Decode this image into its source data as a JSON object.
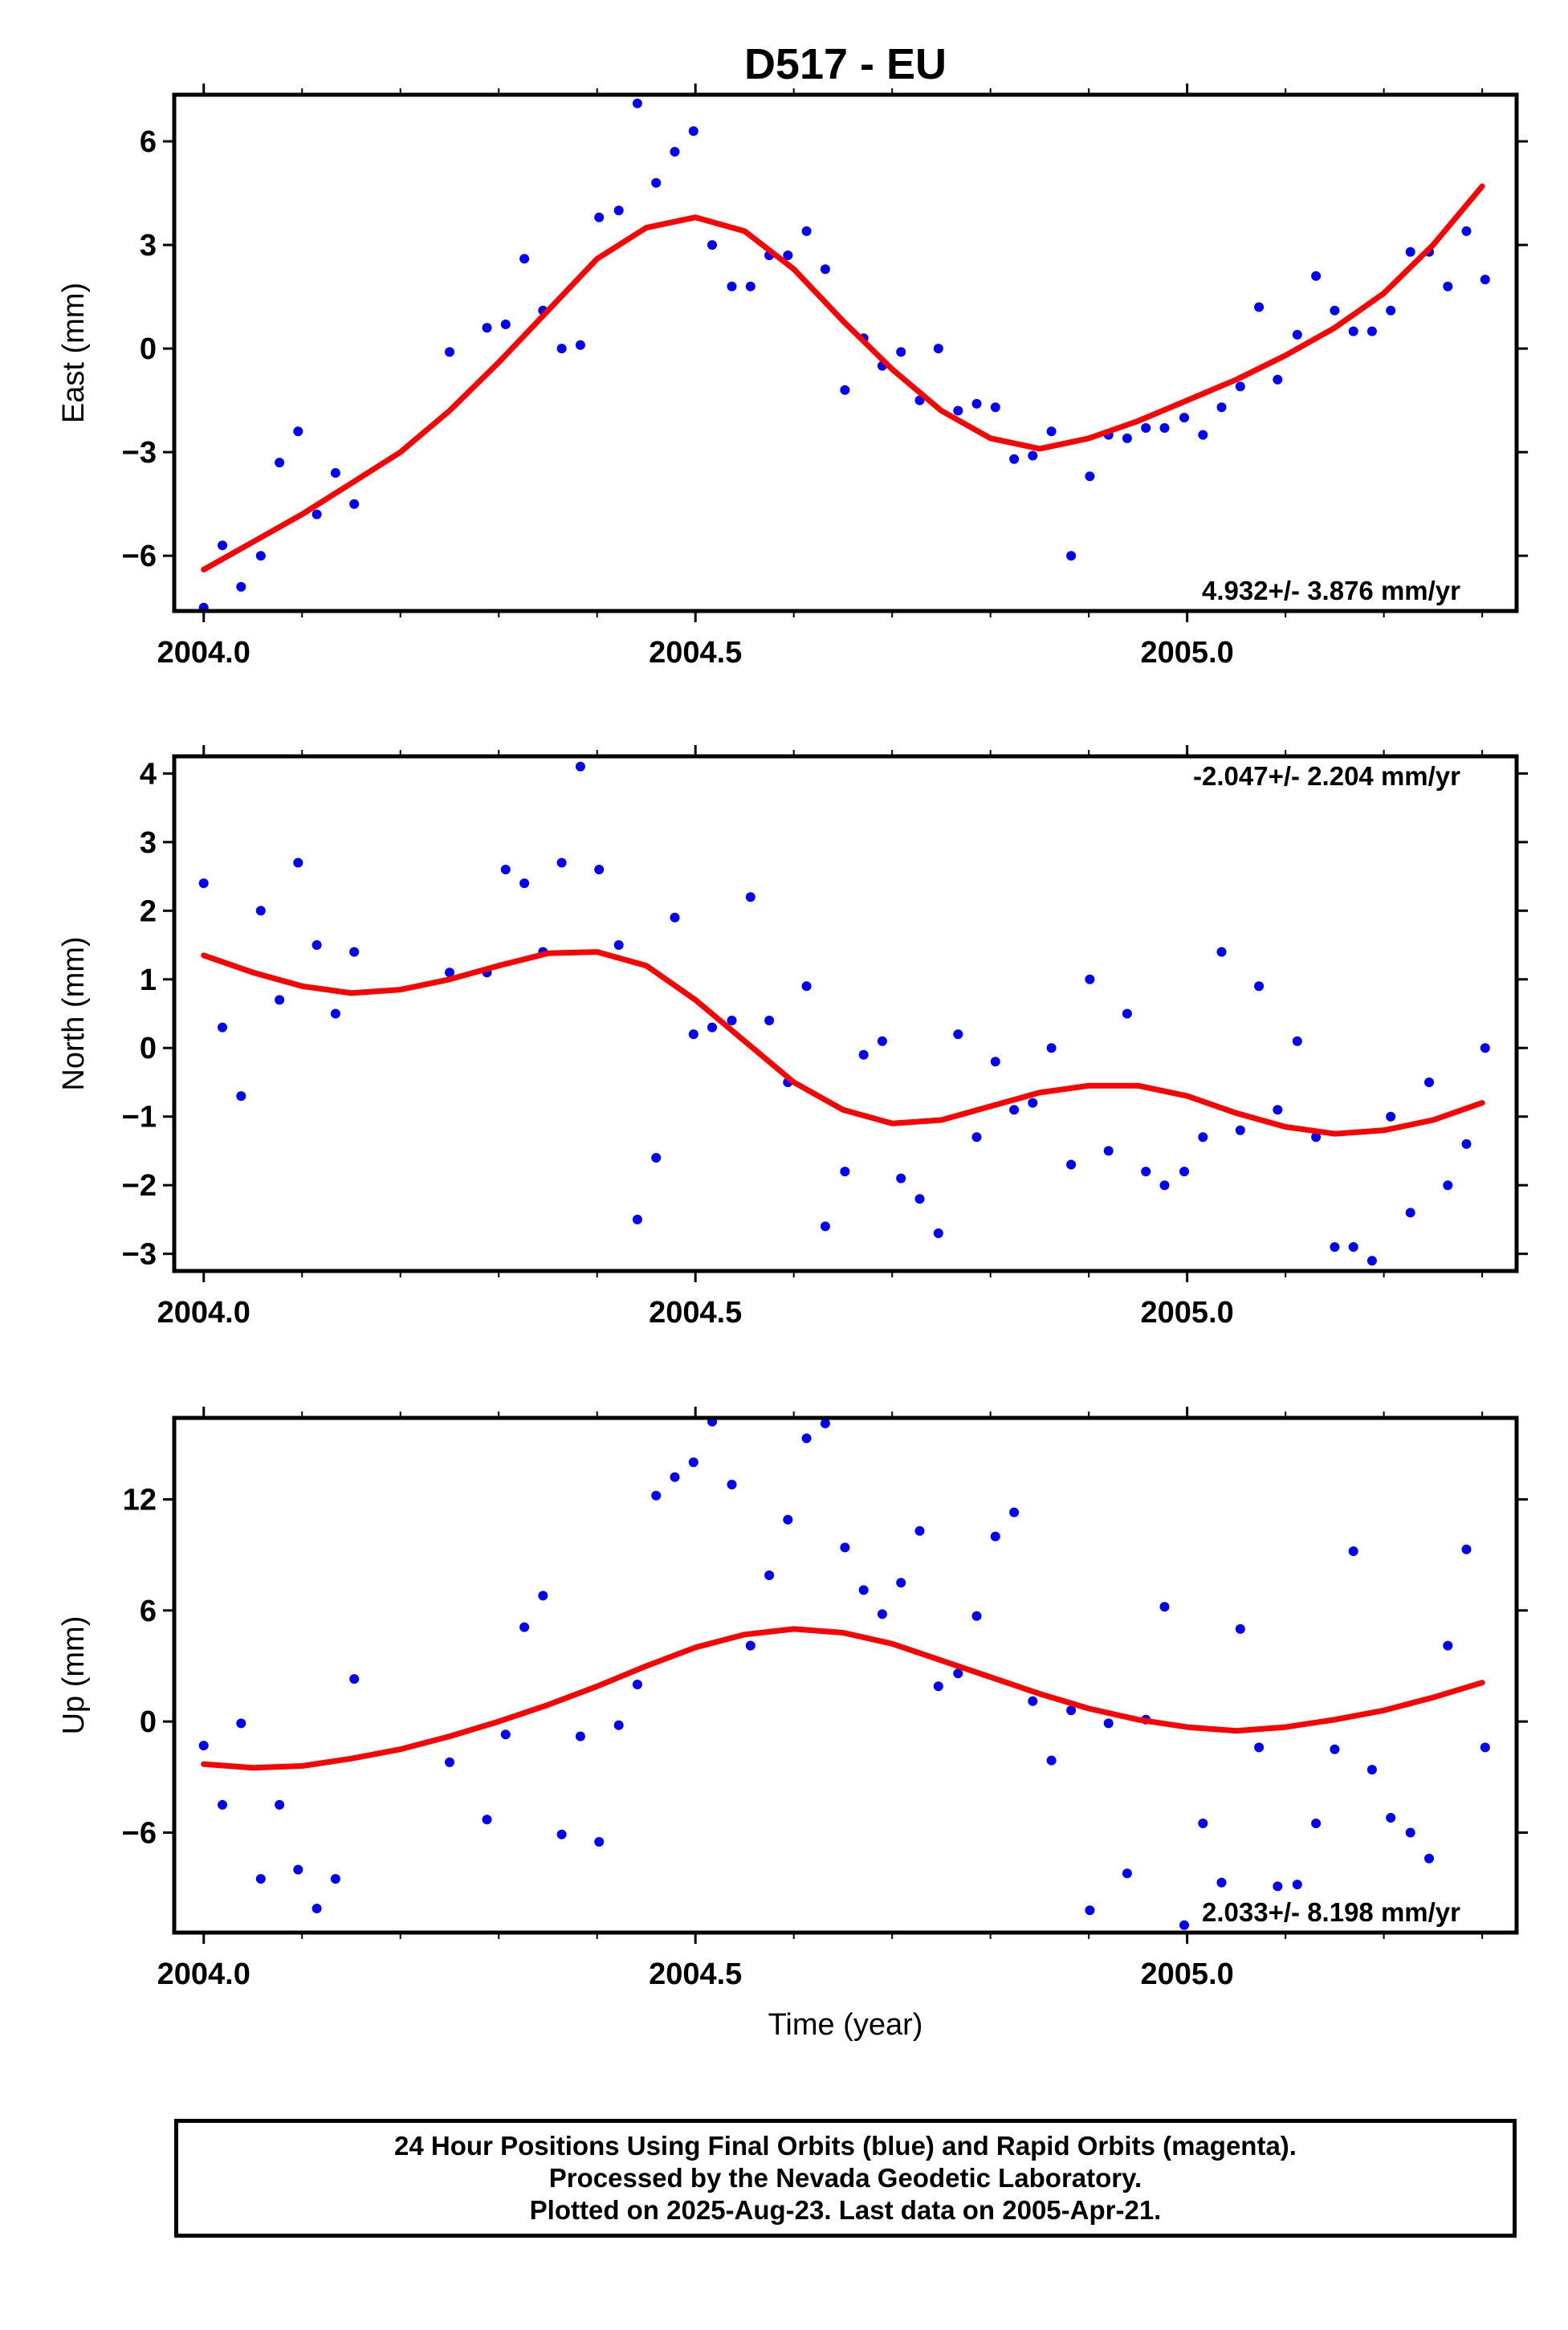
{
  "title": "D517 - EU",
  "chart_data": [
    {
      "type": "scatter",
      "ylabel": "East (mm)",
      "xlabel": "",
      "xlim": [
        2003.97,
        2005.335
      ],
      "ylim": [
        -7.6,
        7.35
      ],
      "x_ticks": [
        2004.0,
        2004.5,
        2005.0
      ],
      "x_tick_labels": [
        "2004.0",
        "2004.5",
        "2005.0"
      ],
      "y_ticks": [
        -6,
        -3,
        0,
        3,
        6
      ],
      "y_tick_labels": [
        "−6",
        "−3",
        "0",
        "3",
        "6"
      ],
      "rate_label": "4.932+/- 3.876 mm/yr",
      "rate_position": "bottom-right",
      "series": [
        {
          "color": "#0000ff",
          "x": [
            2004.0,
            2004.019,
            2004.038,
            2004.058,
            2004.077,
            2004.096,
            2004.115,
            2004.134,
            2004.153,
            2004.25,
            2004.288,
            2004.307,
            2004.326,
            2004.345,
            2004.364,
            2004.383,
            2004.402,
            2004.422,
            2004.441,
            2004.46,
            2004.479,
            2004.498,
            2004.517,
            2004.537,
            2004.556,
            2004.575,
            2004.594,
            2004.613,
            2004.632,
            2004.652,
            2004.671,
            2004.69,
            2004.709,
            2004.728,
            2004.747,
            2004.767,
            2004.786,
            2004.805,
            2004.824,
            2004.843,
            2004.862,
            2004.882,
            2004.901,
            2004.92,
            2004.939,
            2004.958,
            2004.977,
            2004.997,
            2005.016,
            2005.035,
            2005.054,
            2005.073,
            2005.092,
            2005.112,
            2005.131,
            2005.15,
            2005.169,
            2005.188,
            2005.207,
            2005.227,
            2005.246,
            2005.265,
            2005.284,
            2005.303
          ],
          "y": [
            -7.5,
            -5.7,
            -6.9,
            -6.0,
            -3.3,
            -2.4,
            -4.8,
            -3.6,
            -4.5,
            -0.1,
            0.6,
            0.7,
            2.6,
            1.1,
            0.0,
            0.1,
            3.8,
            4.0,
            7.1,
            4.8,
            5.7,
            6.3,
            3.0,
            1.8,
            1.8,
            2.7,
            2.7,
            3.4,
            2.3,
            -1.2,
            0.3,
            -0.5,
            -0.1,
            -1.5,
            0.0,
            -1.8,
            -1.6,
            -1.7,
            -3.2,
            -3.1,
            -2.4,
            -6.0,
            -3.7,
            -2.5,
            -2.6,
            -2.3,
            -2.3,
            -2.0,
            -2.5,
            -1.7,
            -1.1,
            1.2,
            -0.9,
            0.4,
            2.1,
            1.1,
            0.5,
            0.5,
            1.1,
            2.8,
            2.8,
            1.8,
            3.4,
            2.0
          ]
        },
        {
          "color": "#ff0000",
          "style": "line",
          "x": [
            2004.0,
            2004.05,
            2004.1,
            2004.15,
            2004.2,
            2004.25,
            2004.3,
            2004.35,
            2004.4,
            2004.45,
            2004.5,
            2004.55,
            2004.6,
            2004.65,
            2004.7,
            2004.75,
            2004.8,
            2004.85,
            2004.9,
            2004.95,
            2005.0,
            2005.05,
            2005.1,
            2005.15,
            2005.2,
            2005.25,
            2005.3
          ],
          "y": [
            -6.4,
            -5.6,
            -4.8,
            -3.9,
            -3.0,
            -1.8,
            -0.4,
            1.1,
            2.6,
            3.5,
            3.8,
            3.4,
            2.3,
            0.8,
            -0.6,
            -1.8,
            -2.6,
            -2.9,
            -2.6,
            -2.1,
            -1.5,
            -0.9,
            -0.2,
            0.6,
            1.6,
            3.0,
            4.7
          ]
        }
      ]
    },
    {
      "type": "scatter",
      "ylabel": "North (mm)",
      "xlabel": "",
      "xlim": [
        2003.97,
        2005.335
      ],
      "ylim": [
        -3.25,
        4.25
      ],
      "x_ticks": [
        2004.0,
        2004.5,
        2005.0
      ],
      "x_tick_labels": [
        "2004.0",
        "2004.5",
        "2005.0"
      ],
      "y_ticks": [
        -3,
        -2,
        -1,
        0,
        1,
        2,
        3,
        4
      ],
      "y_tick_labels": [
        "−3",
        "−2",
        "−1",
        "0",
        "1",
        "2",
        "3",
        "4"
      ],
      "rate_label": "-2.047+/- 2.204 mm/yr",
      "rate_position": "top-right",
      "series": [
        {
          "color": "#0000ff",
          "x": [
            2004.0,
            2004.019,
            2004.038,
            2004.058,
            2004.077,
            2004.096,
            2004.115,
            2004.134,
            2004.153,
            2004.25,
            2004.288,
            2004.307,
            2004.326,
            2004.345,
            2004.364,
            2004.383,
            2004.402,
            2004.422,
            2004.441,
            2004.46,
            2004.479,
            2004.498,
            2004.517,
            2004.537,
            2004.556,
            2004.575,
            2004.594,
            2004.613,
            2004.632,
            2004.652,
            2004.671,
            2004.69,
            2004.709,
            2004.728,
            2004.747,
            2004.767,
            2004.786,
            2004.805,
            2004.824,
            2004.843,
            2004.862,
            2004.882,
            2004.901,
            2004.92,
            2004.939,
            2004.958,
            2004.977,
            2004.997,
            2005.016,
            2005.035,
            2005.054,
            2005.073,
            2005.092,
            2005.112,
            2005.131,
            2005.15,
            2005.169,
            2005.188,
            2005.207,
            2005.227,
            2005.246,
            2005.265,
            2005.284,
            2005.303
          ],
          "y": [
            2.4,
            0.3,
            -0.7,
            2.0,
            0.7,
            2.7,
            1.5,
            0.5,
            1.4,
            1.1,
            1.1,
            2.6,
            2.4,
            1.4,
            2.7,
            4.1,
            2.6,
            1.5,
            -2.5,
            -1.6,
            1.9,
            0.2,
            0.3,
            0.4,
            2.2,
            0.4,
            -0.5,
            0.9,
            -2.6,
            -1.8,
            -0.1,
            0.1,
            -1.9,
            -2.2,
            -2.7,
            0.2,
            -1.3,
            -0.2,
            -0.9,
            -0.8,
            0.0,
            -1.7,
            1.0,
            -1.5,
            0.5,
            -1.8,
            -2.0,
            -1.8,
            -1.3,
            1.4,
            -1.2,
            0.9,
            -0.9,
            0.1,
            -1.3,
            -2.9,
            -2.9,
            -3.1,
            -1.0,
            -2.4,
            -0.5,
            -2.0,
            -1.4,
            0.0
          ]
        },
        {
          "color": "#ff0000",
          "style": "line",
          "x": [
            2004.0,
            2004.05,
            2004.1,
            2004.15,
            2004.2,
            2004.25,
            2004.3,
            2004.35,
            2004.4,
            2004.45,
            2004.5,
            2004.55,
            2004.6,
            2004.65,
            2004.7,
            2004.75,
            2004.8,
            2004.85,
            2004.9,
            2004.95,
            2005.0,
            2005.05,
            2005.1,
            2005.15,
            2005.2,
            2005.25,
            2005.3
          ],
          "y": [
            1.35,
            1.1,
            0.9,
            0.8,
            0.85,
            1.0,
            1.2,
            1.38,
            1.4,
            1.2,
            0.7,
            0.1,
            -0.5,
            -0.9,
            -1.1,
            -1.05,
            -0.85,
            -0.65,
            -0.55,
            -0.55,
            -0.7,
            -0.95,
            -1.15,
            -1.25,
            -1.2,
            -1.05,
            -0.8
          ]
        }
      ]
    },
    {
      "type": "scatter",
      "ylabel": "Up (mm)",
      "xlabel": "Time (year)",
      "xlim": [
        2003.97,
        2005.335
      ],
      "ylim": [
        -11.4,
        16.4
      ],
      "x_ticks": [
        2004.0,
        2004.5,
        2005.0
      ],
      "x_tick_labels": [
        "2004.0",
        "2004.5",
        "2005.0"
      ],
      "y_ticks": [
        -6,
        0,
        6,
        12
      ],
      "y_tick_labels": [
        "−6",
        "0",
        "6",
        "12"
      ],
      "rate_label": "2.033+/- 8.198 mm/yr",
      "rate_position": "bottom-right",
      "series": [
        {
          "color": "#0000ff",
          "x": [
            2004.0,
            2004.019,
            2004.038,
            2004.058,
            2004.077,
            2004.096,
            2004.115,
            2004.134,
            2004.153,
            2004.25,
            2004.288,
            2004.307,
            2004.326,
            2004.345,
            2004.364,
            2004.383,
            2004.402,
            2004.422,
            2004.441,
            2004.46,
            2004.479,
            2004.498,
            2004.517,
            2004.537,
            2004.556,
            2004.575,
            2004.594,
            2004.613,
            2004.632,
            2004.652,
            2004.671,
            2004.69,
            2004.709,
            2004.728,
            2004.747,
            2004.767,
            2004.786,
            2004.805,
            2004.824,
            2004.843,
            2004.862,
            2004.882,
            2004.901,
            2004.92,
            2004.939,
            2004.958,
            2004.977,
            2004.997,
            2005.016,
            2005.035,
            2005.054,
            2005.073,
            2005.092,
            2005.112,
            2005.131,
            2005.15,
            2005.169,
            2005.188,
            2005.207,
            2005.227,
            2005.246,
            2005.265,
            2005.284,
            2005.303
          ],
          "y": [
            -1.3,
            -4.5,
            -0.1,
            -8.5,
            -4.5,
            -8.0,
            -10.1,
            -8.5,
            2.3,
            -2.2,
            -5.3,
            -0.7,
            5.1,
            6.8,
            -6.1,
            -0.8,
            -6.5,
            -0.2,
            2.0,
            12.2,
            13.2,
            14.0,
            16.2,
            12.8,
            4.1,
            7.9,
            10.9,
            15.3,
            16.1,
            9.4,
            7.1,
            5.8,
            7.5,
            10.3,
            1.9,
            2.6,
            5.7,
            10.0,
            11.3,
            1.1,
            -2.1,
            0.6,
            -10.2,
            -0.1,
            -8.2,
            0.1,
            6.2,
            -11.0,
            -5.5,
            -8.7,
            5.0,
            -1.4,
            -8.9,
            -8.8,
            -5.5,
            -1.5,
            9.2,
            -2.6,
            -5.2,
            -6.0,
            -7.4,
            4.1,
            9.3,
            -1.4
          ]
        },
        {
          "color": "#ff0000",
          "style": "line",
          "x": [
            2004.0,
            2004.05,
            2004.1,
            2004.15,
            2004.2,
            2004.25,
            2004.3,
            2004.35,
            2004.4,
            2004.45,
            2004.5,
            2004.55,
            2004.6,
            2004.65,
            2004.7,
            2004.75,
            2004.8,
            2004.85,
            2004.9,
            2004.95,
            2005.0,
            2005.05,
            2005.1,
            2005.15,
            2005.2,
            2005.25,
            2005.3
          ],
          "y": [
            -2.3,
            -2.5,
            -2.4,
            -2.0,
            -1.5,
            -0.8,
            0.0,
            0.9,
            1.9,
            3.0,
            4.0,
            4.7,
            5.0,
            4.8,
            4.2,
            3.3,
            2.4,
            1.5,
            0.7,
            0.1,
            -0.3,
            -0.5,
            -0.3,
            0.1,
            0.6,
            1.3,
            2.1
          ]
        }
      ]
    }
  ],
  "caption": {
    "line1": "24 Hour Positions Using Final Orbits (blue) and Rapid Orbits (magenta).",
    "line2": "Processed by the Nevada Geodetic Laboratory.",
    "line3": "Plotted on 2025-Aug-23. Last data on 2005-Apr-21."
  }
}
